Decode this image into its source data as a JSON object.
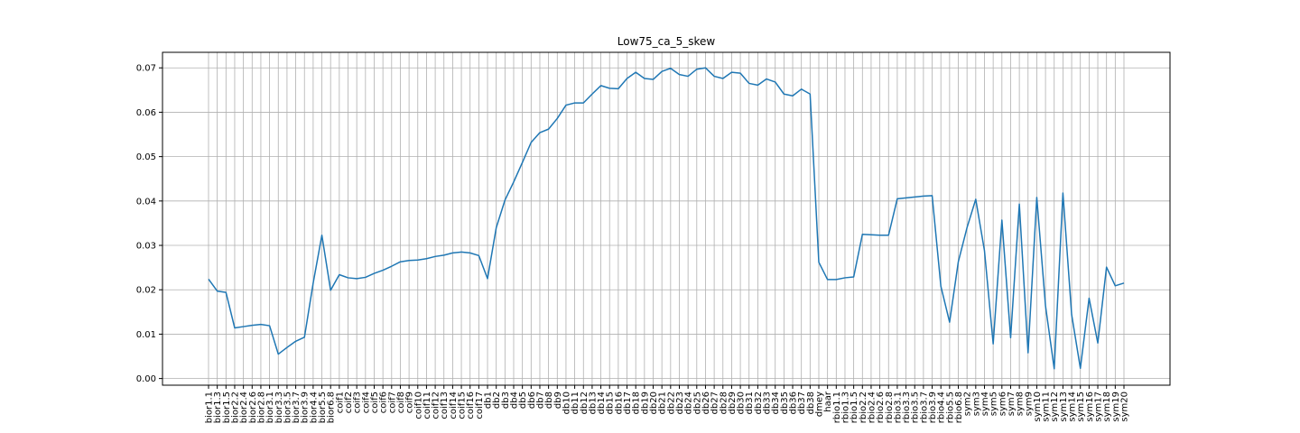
{
  "chart_data": {
    "type": "line",
    "title": "Low75_ca_5_skew",
    "xlabel": "",
    "ylabel": "",
    "grid": true,
    "ylim": [
      -0.0015,
      0.0735
    ],
    "yticks": [
      "0.00",
      "0.01",
      "0.02",
      "0.03",
      "0.04",
      "0.05",
      "0.06",
      "0.07"
    ],
    "series_color": "#1f77b4",
    "categories": [
      "bior1.1",
      "bior1.3",
      "bior1.5",
      "bior2.2",
      "bior2.4",
      "bior2.6",
      "bior2.8",
      "bior3.1",
      "bior3.3",
      "bior3.5",
      "bior3.7",
      "bior3.9",
      "bior4.4",
      "bior5.5",
      "bior6.8",
      "coif1",
      "coif2",
      "coif3",
      "coif4",
      "coif5",
      "coif6",
      "coif7",
      "coif8",
      "coif9",
      "coif10",
      "coif11",
      "coif12",
      "coif13",
      "coif14",
      "coif15",
      "coif16",
      "coif17",
      "db1",
      "db2",
      "db3",
      "db4",
      "db5",
      "db6",
      "db7",
      "db8",
      "db9",
      "db10",
      "db11",
      "db12",
      "db13",
      "db14",
      "db15",
      "db16",
      "db17",
      "db18",
      "db19",
      "db20",
      "db21",
      "db22",
      "db23",
      "db24",
      "db25",
      "db26",
      "db27",
      "db28",
      "db29",
      "db30",
      "db31",
      "db32",
      "db33",
      "db34",
      "db35",
      "db36",
      "db37",
      "db38",
      "dmey",
      "haar",
      "rbio1.1",
      "rbio1.3",
      "rbio1.5",
      "rbio2.2",
      "rbio2.4",
      "rbio2.6",
      "rbio2.8",
      "rbio3.1",
      "rbio3.3",
      "rbio3.5",
      "rbio3.7",
      "rbio3.9",
      "rbio4.4",
      "rbio5.5",
      "rbio6.8",
      "sym2",
      "sym3",
      "sym4",
      "sym5",
      "sym6",
      "sym7",
      "sym8",
      "sym9",
      "sym10",
      "sym11",
      "sym12",
      "sym13",
      "sym14",
      "sym15",
      "sym16",
      "sym17",
      "sym18",
      "sym19",
      "sym20"
    ],
    "values": [
      0.0224,
      0.0197,
      0.0194,
      0.0114,
      0.0117,
      0.012,
      0.0122,
      0.0119,
      0.0055,
      0.007,
      0.0084,
      0.0093,
      0.0215,
      0.0323,
      0.0199,
      0.0234,
      0.0227,
      0.0225,
      0.0228,
      0.0237,
      0.0244,
      0.0253,
      0.0263,
      0.0266,
      0.0267,
      0.027,
      0.0275,
      0.0278,
      0.0283,
      0.0285,
      0.0283,
      0.0277,
      0.0225,
      0.034,
      0.0402,
      0.0443,
      0.0487,
      0.0532,
      0.0554,
      0.0562,
      0.0586,
      0.0616,
      0.0621,
      0.0621,
      0.0641,
      0.066,
      0.0654,
      0.0653,
      0.0676,
      0.069,
      0.0676,
      0.0674,
      0.0692,
      0.0699,
      0.0685,
      0.0681,
      0.0697,
      0.07,
      0.0681,
      0.0676,
      0.069,
      0.0688,
      0.0665,
      0.0661,
      0.0675,
      0.0668,
      0.0641,
      0.0637,
      0.0652,
      0.0641,
      0.0262,
      0.0223,
      0.0223,
      0.0227,
      0.0229,
      0.0325,
      0.0324,
      0.0323,
      0.0323,
      0.0405,
      0.0407,
      0.0409,
      0.0411,
      0.0412,
      0.0208,
      0.0127,
      0.0263,
      0.034,
      0.0404,
      0.0288,
      0.0078,
      0.0357,
      0.0092,
      0.0393,
      0.0058,
      0.0408,
      0.0164,
      0.0022,
      0.0418,
      0.0144,
      0.0023,
      0.0181,
      0.008,
      0.0251,
      0.0209,
      0.0215
    ]
  }
}
